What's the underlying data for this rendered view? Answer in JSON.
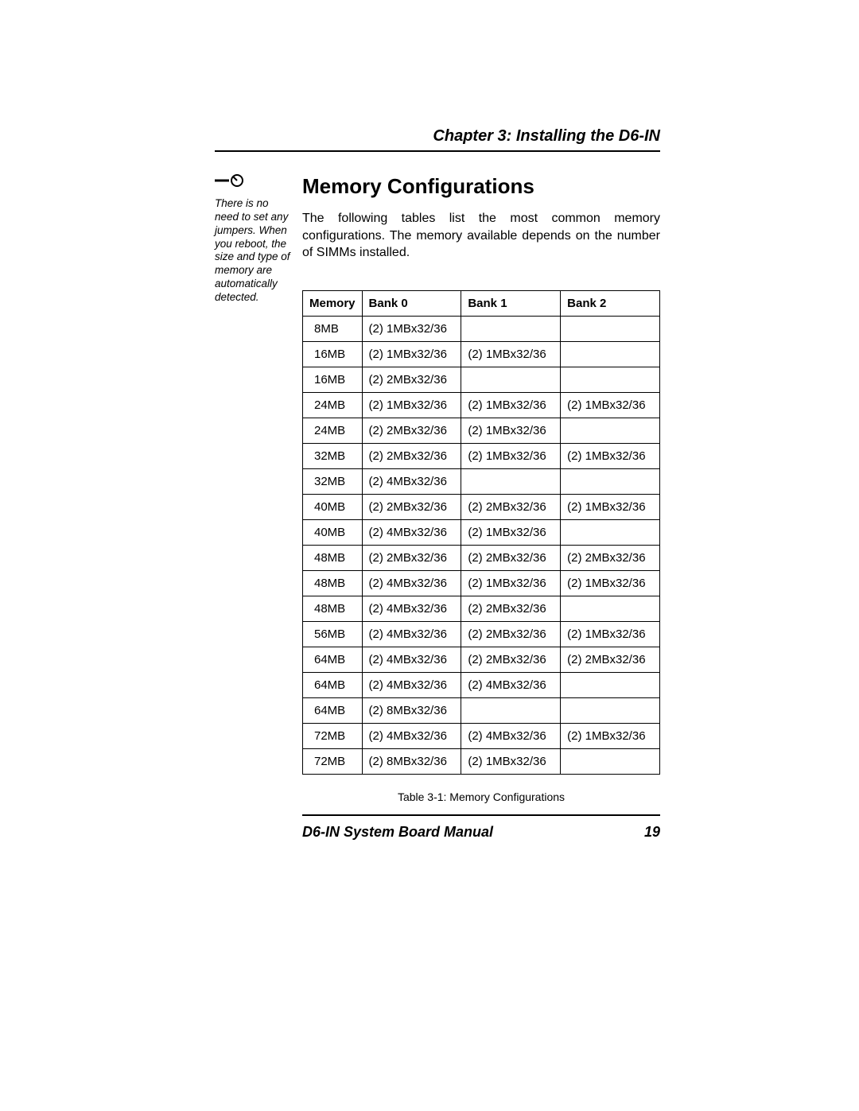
{
  "header": {
    "chapter_title": "Chapter 3: Installing the D6-IN"
  },
  "sidebar": {
    "note": "There is no need to set any jumpers. When you reboot, the size and type of memory are automatically detected."
  },
  "section": {
    "heading": "Memory Configurations",
    "intro": "The following tables list the most common memory configurations. The memory available depends on the number of SIMMs installed."
  },
  "table": {
    "caption": "Table 3-1: Memory Configurations",
    "columns": [
      "Memory",
      "Bank 0",
      "Bank 1",
      "Bank 2"
    ],
    "col_widths_pct": [
      16,
      28,
      28,
      28
    ],
    "rows": [
      [
        "8MB",
        "(2) 1MBx32/36",
        "",
        ""
      ],
      [
        "16MB",
        "(2) 1MBx32/36",
        "(2) 1MBx32/36",
        ""
      ],
      [
        "16MB",
        "(2) 2MBx32/36",
        "",
        ""
      ],
      [
        "24MB",
        "(2) 1MBx32/36",
        "(2) 1MBx32/36",
        "(2) 1MBx32/36"
      ],
      [
        "24MB",
        "(2) 2MBx32/36",
        "(2) 1MBx32/36",
        ""
      ],
      [
        "32MB",
        "(2) 2MBx32/36",
        "(2) 1MBx32/36",
        "(2) 1MBx32/36"
      ],
      [
        "32MB",
        "(2) 4MBx32/36",
        "",
        ""
      ],
      [
        "40MB",
        "(2) 2MBx32/36",
        "(2) 2MBx32/36",
        "(2) 1MBx32/36"
      ],
      [
        "40MB",
        "(2) 4MBx32/36",
        "(2) 1MBx32/36",
        ""
      ],
      [
        "48MB",
        "(2) 2MBx32/36",
        "(2) 2MBx32/36",
        "(2) 2MBx32/36"
      ],
      [
        "48MB",
        "(2) 4MBx32/36",
        "(2) 1MBx32/36",
        "(2) 1MBx32/36"
      ],
      [
        "48MB",
        "(2) 4MBx32/36",
        "(2) 2MBx32/36",
        ""
      ],
      [
        "56MB",
        "(2) 4MBx32/36",
        "(2) 2MBx32/36",
        "(2) 1MBx32/36"
      ],
      [
        "64MB",
        "(2) 4MBx32/36",
        "(2) 2MBx32/36",
        "(2) 2MBx32/36"
      ],
      [
        "64MB",
        "(2) 4MBx32/36",
        "(2) 4MBx32/36",
        ""
      ],
      [
        "64MB",
        "(2) 8MBx32/36",
        "",
        ""
      ],
      [
        "72MB",
        "(2) 4MBx32/36",
        "(2) 4MBx32/36",
        "(2) 1MBx32/36"
      ],
      [
        "72MB",
        "(2) 8MBx32/36",
        "(2) 1MBx32/36",
        ""
      ]
    ]
  },
  "footer": {
    "manual_title": "D6-IN System Board Manual",
    "page_number": "19"
  }
}
